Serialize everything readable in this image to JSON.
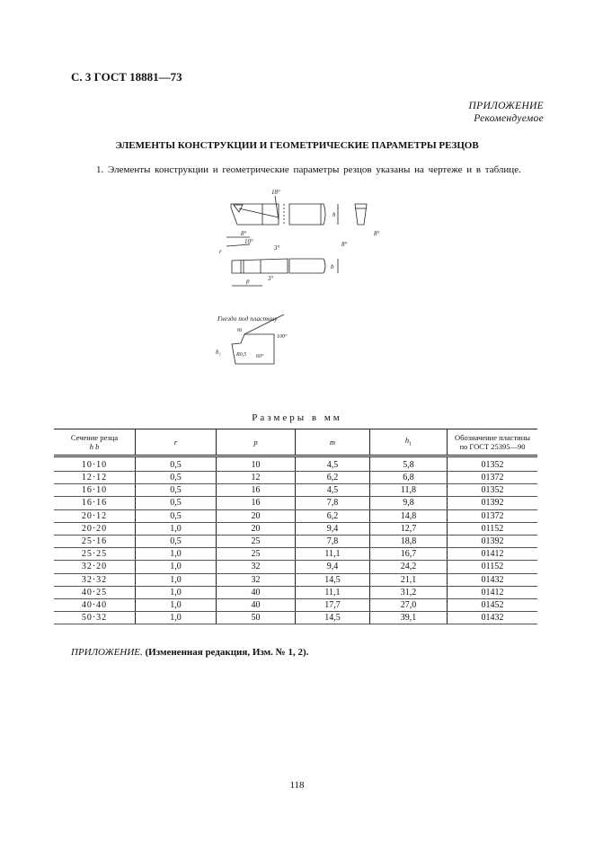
{
  "header": "С. 3 ГОСТ 18881—73",
  "appendix": {
    "label": "ПРИЛОЖЕНИЕ",
    "sub": "Рекомендуемое"
  },
  "title": "ЭЛЕМЕНТЫ КОНСТРУКЦИИ И ГЕОМЕТРИЧЕСКИЕ ПАРАМЕТРЫ РЕЗЦОВ",
  "paragraph": "1. Элементы конструкции и геометрические параметры резцов указаны на чертеже и в таблице.",
  "drawing": {
    "labels": {
      "angle18": "18°",
      "h": "h",
      "angle8a": "8°",
      "angle10": "10°",
      "angle8b": "8°",
      "angle8c": "8°",
      "r": "r",
      "b": "b",
      "p": "p",
      "angle3a": "3°",
      "angle3b": "3°"
    },
    "socket": {
      "caption": "Гнездо под пластину",
      "m": "m",
      "h1": "h₁",
      "r05": "R0,5",
      "angle100": "100°",
      "angle60": "60°"
    }
  },
  "table": {
    "caption": "Размеры в мм",
    "headers": [
      "Сечение резца",
      "h  b",
      "r",
      "p",
      "m",
      "h",
      "1",
      "Обозначение пластины",
      "по ГОСТ 25395—90"
    ],
    "rows": [
      [
        "10·10",
        "0,5",
        "10",
        "4,5",
        "5,8",
        "01352"
      ],
      [
        "12·12",
        "0,5",
        "12",
        "6,2",
        "6,8",
        "01372"
      ],
      [
        "16·10",
        "0,5",
        "16",
        "4,5",
        "11,8",
        "01352"
      ],
      [
        "16·16",
        "0,5",
        "16",
        "7,8",
        "9,8",
        "01392"
      ],
      [
        "20·12",
        "0,5",
        "20",
        "6,2",
        "14,8",
        "01372"
      ],
      [
        "20·20",
        "1,0",
        "20",
        "9,4",
        "12,7",
        "01152"
      ],
      [
        "25·16",
        "0,5",
        "25",
        "7,8",
        "18,8",
        "01392"
      ],
      [
        "25·25",
        "1,0",
        "25",
        "11,1",
        "16,7",
        "01412"
      ],
      [
        "32·20",
        "1,0",
        "32",
        "9,4",
        "24,2",
        "01152"
      ],
      [
        "32·32",
        "1,0",
        "32",
        "14,5",
        "21,1",
        "01432"
      ],
      [
        "40·25",
        "1,0",
        "40",
        "11,1",
        "31,2",
        "01412"
      ],
      [
        "40·40",
        "1,0",
        "40",
        "17,7",
        "27,0",
        "01452"
      ],
      [
        "50·32",
        "1,0",
        "50",
        "14,5",
        "39,1",
        "01432"
      ]
    ]
  },
  "note": {
    "italic": "ПРИЛОЖЕНИЕ.",
    "bold": "(Измененная редакция, Изм. № 1, 2)."
  },
  "page_number": "118"
}
